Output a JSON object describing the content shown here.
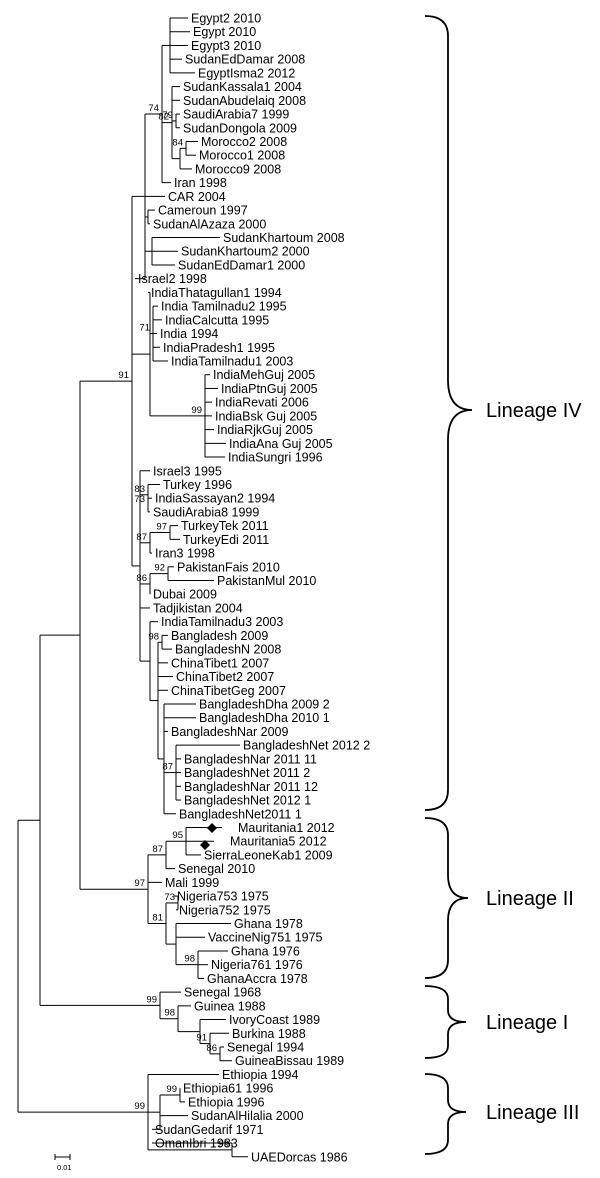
{
  "leaves": [
    "Egypt2 2010",
    "Egypt 2010",
    "Egypt3 2010",
    "SudanEdDamar 2008",
    "EgyptIsma2 2012",
    "SudanKassala1 2004",
    "SudanAbudelaiq 2008",
    "SaudiArabia7 1999",
    "SudanDongola 2009",
    "Morocco2 2008",
    "Morocco1 2008",
    "Morocco9 2008",
    "Iran 1998",
    "CAR 2004",
    "Cameroun 1997",
    "SudanAlAzaza 2000",
    "SudanKhartoum 2008",
    "SudanKhartoum2 2000",
    "SudanEdDamar1 2000",
    "Israel2 1998",
    "IndiaThatagullan1 1994",
    "India Tamilnadu2 1995",
    "IndiaCalcutta 1995",
    "India 1994",
    "IndiaPradesh1 1995",
    "IndiaTamilnadu1 2003",
    "IndiaMehGuj 2005",
    "IndiaPtnGuj 2005",
    "IndiaRevati 2006",
    "IndiaBsk Guj 2005",
    "IndiaRjkGuj 2005",
    "IndiaAna Guj 2005",
    "IndiaSungri 1996",
    "Israel3 1995",
    "Turkey 1996",
    "IndiaSassayan2 1994",
    "SaudiArabia8 1999",
    "TurkeyTek 2011",
    "TurkeyEdi 2011",
    "Iran3 1998",
    "PakistanFais 2010",
    "PakistanMul 2010",
    "Dubai 2009",
    "Tadjikistan 2004",
    "IndiaTamilnadu3 2003",
    "Bangladesh 2009",
    "BangladeshN 2008",
    "ChinaTibet1 2007",
    "ChinaTibet2 2007",
    "ChinaTibetGeg 2007",
    "BangladeshDha 2009 2",
    "BangladeshDha 2010 1",
    "BangladeshNar 2009",
    "BangladeshNet 2012 2",
    "BangladeshNar 2011 11",
    "BangladeshNet 2011 2",
    "BangladeshNar 2011 12",
    "BangladeshNet 2012 1",
    "BangladeshNet2011 1",
    "Mauritania1 2012",
    "Mauritania5 2012",
    "SierraLeoneKab1 2009",
    "Senegal 2010",
    "Mali 1999",
    "Nigeria753 1975",
    "Nigeria752 1975",
    "Ghana 1978",
    "VaccineNig751 1975",
    "Ghana 1976",
    "Nigeria761 1976",
    "GhanaAccra 1978",
    "Senegal 1968",
    "Guinea 1988",
    "IvoryCoast 1989",
    "Burkina 1988",
    "Senegal 1994",
    "GuineaBissau 1989",
    "Ethiopia 1994",
    "Ethiopia61 1996",
    "Ethiopia 1996",
    "SudanAlHilalia 2000",
    "SudanGedarif 1971",
    "OmanIbri 1983",
    "UAEDorcas 1986"
  ],
  "bootstrap": [
    "79",
    "82",
    "84",
    "74",
    "71",
    "99",
    "91",
    "83",
    "73",
    "97",
    "87",
    "92",
    "86",
    "98",
    "87",
    "95",
    "87",
    "97",
    "73",
    "81",
    "98",
    "99",
    "98",
    "91",
    "86",
    "99",
    "99",
    "99"
  ],
  "lineages": [
    "Lineage IV",
    "Lineage II",
    "Lineage I",
    "Lineage III"
  ],
  "scale_bar": "0.01",
  "marker_icon": "black-diamond"
}
